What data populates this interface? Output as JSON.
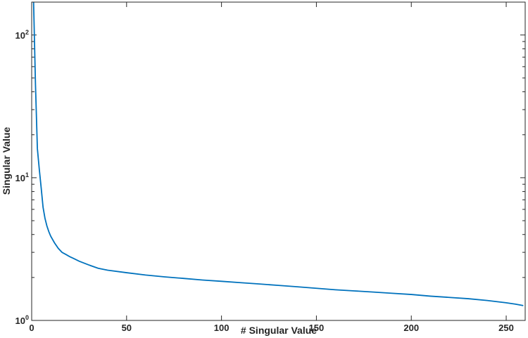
{
  "chart_data": {
    "type": "line",
    "title": "",
    "xlabel": "# Singular Value",
    "ylabel": "Singular Value",
    "xlim": [
      0,
      260
    ],
    "ylim": [
      1,
      170
    ],
    "yscale": "log",
    "grid": false,
    "legend": "none",
    "x_ticks": [
      "0",
      "50",
      "100",
      "150",
      "200",
      "250"
    ],
    "y_ticks": [
      {
        "base": "10",
        "exp": "0"
      },
      {
        "base": "10",
        "exp": "1"
      },
      {
        "base": "10",
        "exp": "2"
      }
    ],
    "series": [
      {
        "color": "#0072BD",
        "x": [
          1,
          2,
          3,
          4,
          5,
          6,
          7,
          8,
          9,
          10,
          12,
          14,
          16,
          18,
          20,
          22,
          25,
          30,
          35,
          40,
          50,
          60,
          70,
          80,
          90,
          100,
          110,
          120,
          130,
          140,
          150,
          160,
          170,
          180,
          190,
          200,
          210,
          220,
          230,
          240,
          250,
          255,
          259
        ],
        "y": [
          170,
          45,
          16,
          11.5,
          8.5,
          6.2,
          5.2,
          4.6,
          4.2,
          3.9,
          3.5,
          3.2,
          3.0,
          2.9,
          2.8,
          2.72,
          2.6,
          2.45,
          2.32,
          2.25,
          2.16,
          2.08,
          2.02,
          1.97,
          1.92,
          1.88,
          1.84,
          1.8,
          1.76,
          1.72,
          1.68,
          1.64,
          1.61,
          1.58,
          1.55,
          1.52,
          1.48,
          1.45,
          1.42,
          1.38,
          1.33,
          1.3,
          1.27
        ]
      }
    ]
  }
}
